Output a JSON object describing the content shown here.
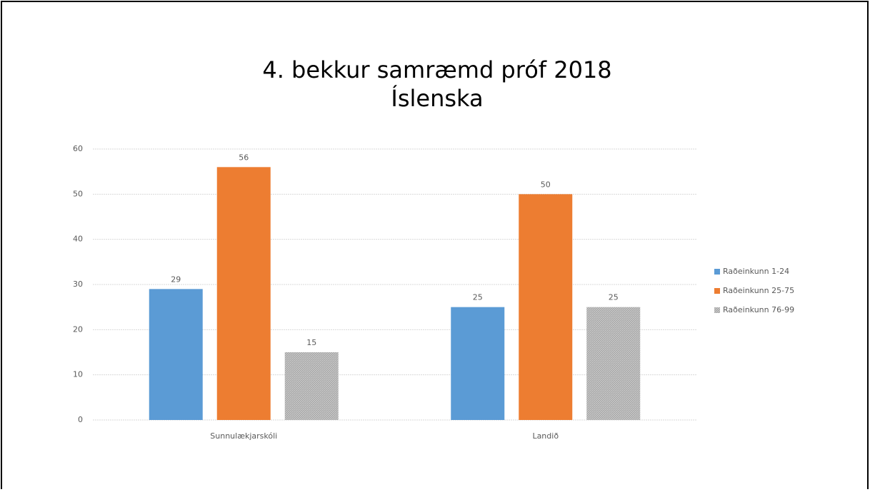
{
  "chart_data": {
    "type": "bar",
    "title": "4. bekkur samræmd próf 2018",
    "subtitle": "Íslenska",
    "categories": [
      "Sunnulækjarskóli",
      "Landið"
    ],
    "series": [
      {
        "name": "Raðeinkunn 1-24",
        "color": "#5b9bd5",
        "values": [
          29,
          25
        ]
      },
      {
        "name": "Raðeinkunn 25-75",
        "color": "#ed7d31",
        "values": [
          56,
          50
        ]
      },
      {
        "name": "Raðeinkunn 76-99",
        "color": "#a5a5a5",
        "values": [
          15,
          25
        ]
      }
    ],
    "ylim": [
      0,
      60
    ],
    "yticks": [
      0,
      10,
      20,
      30,
      40,
      50,
      60
    ],
    "grid": true,
    "legend": "right"
  }
}
